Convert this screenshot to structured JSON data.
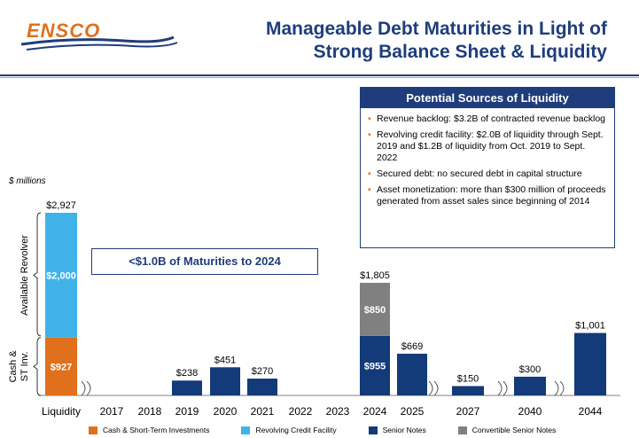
{
  "header": {
    "logo_text": "ENSCO",
    "title_line1": "Manageable Debt Maturities in Light of",
    "title_line2": "Strong Balance Sheet & Liquidity"
  },
  "units_label": "$ millions",
  "callout_text": "<$1.0B of Maturities to 2024",
  "liquidity_box": {
    "title": "Potential Sources of Liquidity",
    "bullets": [
      "Revenue backlog: $3.2B of contracted revenue backlog",
      "Revolving credit facility: $2.0B of liquidity through Sept. 2019 and $1.2B of liquidity from Oct. 2019 to Sept. 2022",
      "Secured debt: no secured debt in capital structure",
      "Asset monetization: more than $300 million of proceeds generated from asset sales since beginning of 2014"
    ]
  },
  "colors": {
    "navy": "#1f3d7a",
    "cash": "#e0701c",
    "revolver": "#3fb3e8",
    "senior": "#133a79",
    "convertible": "#808080"
  },
  "chart_data": {
    "type": "bar",
    "stacked": true,
    "title": "Manageable Debt Maturities in Light of Strong Balance Sheet & Liquidity",
    "ylabel": "$ millions",
    "categories": [
      "Liquidity",
      "2017",
      "2018",
      "2019",
      "2020",
      "2021",
      "2022",
      "2023",
      "2024",
      "2025",
      "2027",
      "2040",
      "2044"
    ],
    "series": [
      {
        "name": "Cash & Short-Term Investments",
        "color": "#e0701c",
        "values": [
          927,
          0,
          0,
          0,
          0,
          0,
          0,
          0,
          0,
          0,
          0,
          0,
          0
        ]
      },
      {
        "name": "Revolving Credit Facility",
        "color": "#3fb3e8",
        "values": [
          2000,
          0,
          0,
          0,
          0,
          0,
          0,
          0,
          0,
          0,
          0,
          0,
          0
        ]
      },
      {
        "name": "Senior Notes",
        "color": "#133a79",
        "values": [
          0,
          0,
          0,
          238,
          451,
          270,
          0,
          0,
          955,
          669,
          150,
          300,
          1001
        ]
      },
      {
        "name": "Convertible Senior Notes",
        "color": "#808080",
        "values": [
          0,
          0,
          0,
          0,
          0,
          0,
          0,
          0,
          850,
          0,
          0,
          0,
          0
        ]
      }
    ],
    "segment_labels": {
      "Liquidity": [
        "$927",
        "$2,000"
      ],
      "2024": [
        "$955",
        "$850"
      ]
    },
    "total_labels": [
      "$2,927",
      "",
      "",
      "$238",
      "$451",
      "$270",
      "",
      "",
      "$1,805",
      "$669",
      "$150",
      "$300",
      "$1,001"
    ],
    "brace_labels": [
      "Cash & ST Inv.",
      "Available Revolver"
    ],
    "axis_breaks_after": [
      "Liquidity",
      "2025",
      "2027",
      "2040"
    ],
    "ylim": [
      0,
      2927
    ],
    "legend_position": "bottom"
  }
}
